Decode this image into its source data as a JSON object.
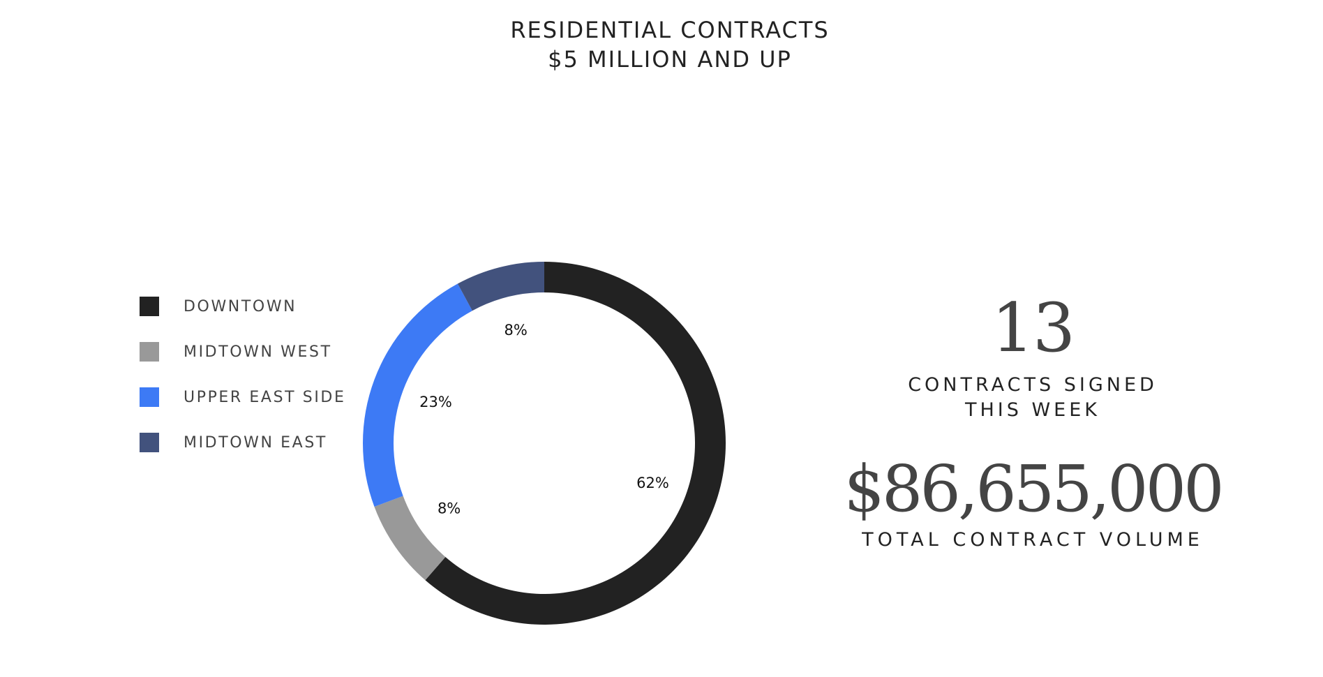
{
  "header": {
    "title_line1": "RESIDENTIAL CONTRACTS",
    "title_line2": "$5 MILLION AND UP"
  },
  "chart_data": {
    "type": "pie",
    "style": "donut",
    "title": "RESIDENTIAL CONTRACTS $5 MILLION AND UP",
    "legend_position": "left",
    "categories": [
      "DOWNTOWN",
      "MIDTOWN WEST",
      "UPPER EAST SIDE",
      "MIDTOWN EAST"
    ],
    "values": [
      62,
      8,
      23,
      8
    ],
    "labels": [
      "62%",
      "8%",
      "23%",
      "8%"
    ],
    "colors": [
      "#222222",
      "#999999",
      "#3d7af5",
      "#42527d"
    ]
  },
  "stats": {
    "count": "13",
    "count_label_line1": "CONTRACTS SIGNED",
    "count_label_line2": "THIS WEEK",
    "volume": "$86,655,000",
    "volume_label": "TOTAL CONTRACT VOLUME"
  }
}
